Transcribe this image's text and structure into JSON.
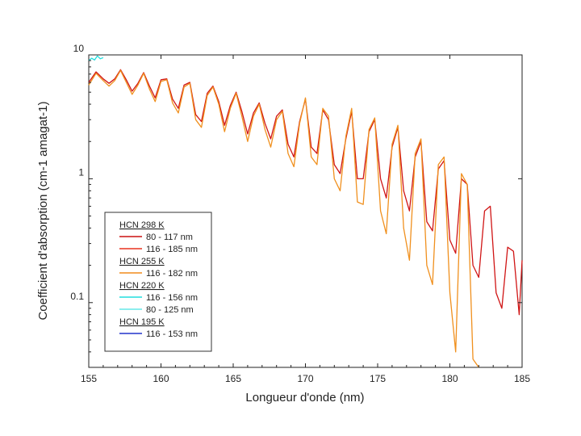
{
  "chart_data": {
    "type": "line",
    "title": "",
    "xlabel": "Longueur d'onde (nm)",
    "ylabel": "Coefficient d'absorption (cm-1 amagat-1)",
    "xlim": [
      155,
      185
    ],
    "ylim": [
      0.03,
      10
    ],
    "yscale": "log",
    "xticks": [
      "155",
      "160",
      "165",
      "170",
      "175",
      "180",
      "185"
    ],
    "yticks": [
      {
        "label": "10",
        "value": 10
      },
      {
        "label": "1",
        "value": 1
      },
      {
        "label": "0.1",
        "value": 0.1
      }
    ],
    "legend": {
      "position": "bottom-left",
      "groups": [
        {
          "header": "HCN 298 K",
          "entries": [
            {
              "label": "80 - 117 nm",
              "color": "#cc1111"
            },
            {
              "label": "116 - 185 nm",
              "color": "#e8321e"
            }
          ]
        },
        {
          "header": "HCN 255 K",
          "entries": [
            {
              "label": "116 - 182 nm",
              "color": "#f08c1c"
            }
          ]
        },
        {
          "header": "HCN 220 K",
          "entries": [
            {
              "label": "116 - 156 nm",
              "color": "#22dddd"
            },
            {
              "label": "80 - 125 nm",
              "color": "#66e8e8"
            }
          ]
        },
        {
          "header": "HCN 195 K",
          "entries": [
            {
              "label": "116 - 153 nm",
              "color": "#2233cc"
            }
          ]
        }
      ]
    },
    "series": [
      {
        "name": "HCN 298 K 116 - 185 nm",
        "color": "#d01515",
        "x": [
          155,
          155.5,
          156,
          156.4,
          156.8,
          157.2,
          157.6,
          158.0,
          158.4,
          158.8,
          159.2,
          159.6,
          160.0,
          160.4,
          160.8,
          161.2,
          161.6,
          162.0,
          162.4,
          162.8,
          163.2,
          163.6,
          164.0,
          164.4,
          164.8,
          165.2,
          165.6,
          166.0,
          166.4,
          166.8,
          167.2,
          167.6,
          168.0,
          168.4,
          168.8,
          169.2,
          169.6,
          170.0,
          170.4,
          170.8,
          171.2,
          171.6,
          172.0,
          172.4,
          172.8,
          173.2,
          173.6,
          174.0,
          174.4,
          174.8,
          175.2,
          175.6,
          176.0,
          176.4,
          176.8,
          177.2,
          177.6,
          178.0,
          178.4,
          178.8,
          179.2,
          179.6,
          180.0,
          180.4,
          180.8,
          181.2,
          181.6,
          182.0,
          182.4,
          182.8,
          183.2,
          183.6,
          184.0,
          184.4,
          184.8,
          185.0
        ],
        "y": [
          6.0,
          7.3,
          6.4,
          5.9,
          6.4,
          7.6,
          6.3,
          5.1,
          5.9,
          7.2,
          5.6,
          4.5,
          6.3,
          6.4,
          4.4,
          3.7,
          5.7,
          6.0,
          3.3,
          2.9,
          4.9,
          5.6,
          4.2,
          2.7,
          3.9,
          5.0,
          3.5,
          2.3,
          3.4,
          4.1,
          2.8,
          2.1,
          3.2,
          3.6,
          1.9,
          1.5,
          2.9,
          4.4,
          1.8,
          1.6,
          3.6,
          3.0,
          1.3,
          1.1,
          2.1,
          3.5,
          1.0,
          1.0,
          2.4,
          3.0,
          1.0,
          0.7,
          1.8,
          2.6,
          0.8,
          0.55,
          1.5,
          2.0,
          0.45,
          0.38,
          1.2,
          1.4,
          0.32,
          0.25,
          1.0,
          0.9,
          0.2,
          0.16,
          0.55,
          0.6,
          0.12,
          0.09,
          0.28,
          0.26,
          0.08,
          0.22
        ]
      },
      {
        "name": "HCN 255 K 116 - 182 nm",
        "color": "#f0901e",
        "x": [
          155,
          155.5,
          156,
          156.4,
          156.8,
          157.2,
          157.6,
          158.0,
          158.4,
          158.8,
          159.2,
          159.6,
          160.0,
          160.4,
          160.8,
          161.2,
          161.6,
          162.0,
          162.4,
          162.8,
          163.2,
          163.6,
          164.0,
          164.4,
          164.8,
          165.2,
          165.6,
          166.0,
          166.4,
          166.8,
          167.2,
          167.6,
          168.0,
          168.4,
          168.8,
          169.2,
          169.6,
          170.0,
          170.4,
          170.8,
          171.2,
          171.6,
          172.0,
          172.4,
          172.8,
          173.2,
          173.6,
          174.0,
          174.4,
          174.8,
          175.2,
          175.6,
          176.0,
          176.4,
          176.8,
          177.2,
          177.6,
          178.0,
          178.4,
          178.8,
          179.2,
          179.6,
          180.0,
          180.4,
          180.8,
          181.2,
          181.6,
          182.0
        ],
        "y": [
          5.7,
          7.1,
          6.2,
          5.6,
          6.2,
          7.5,
          6.0,
          4.8,
          5.7,
          7.1,
          5.3,
          4.2,
          6.1,
          6.3,
          4.1,
          3.4,
          5.5,
          5.9,
          3.0,
          2.6,
          4.7,
          5.5,
          4.0,
          2.4,
          3.7,
          4.9,
          3.2,
          2.0,
          3.2,
          4.0,
          2.5,
          1.8,
          3.0,
          3.5,
          1.6,
          1.25,
          2.8,
          4.5,
          1.5,
          1.3,
          3.7,
          3.2,
          1.0,
          0.8,
          2.2,
          3.7,
          0.65,
          0.62,
          2.5,
          3.1,
          0.55,
          0.36,
          1.9,
          2.7,
          0.4,
          0.22,
          1.6,
          2.1,
          0.2,
          0.14,
          1.3,
          1.5,
          0.12,
          0.04,
          1.1,
          0.9,
          0.035,
          0.03
        ]
      },
      {
        "name": "HCN 220 K 116 - 156 nm",
        "color": "#22dddd",
        "x": [
          155.0,
          155.2,
          155.4,
          155.6,
          155.8,
          156.0
        ],
        "y": [
          9.0,
          9.4,
          9.1,
          9.8,
          9.3,
          9.5
        ]
      }
    ]
  }
}
